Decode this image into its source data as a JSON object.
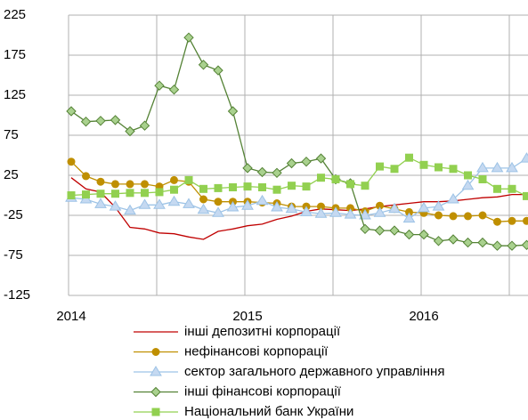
{
  "chart_data": {
    "type": "line",
    "categories": [
      "2014",
      null,
      null,
      null,
      null,
      null,
      null,
      null,
      null,
      null,
      null,
      null,
      "2015",
      null,
      null,
      null,
      null,
      null,
      null,
      null,
      null,
      null,
      null,
      null,
      "2016",
      null,
      null,
      null,
      null,
      null,
      null,
      null
    ],
    "ylim": [
      -125,
      225
    ],
    "yticks": [
      -125,
      -75,
      -25,
      25,
      75,
      125,
      175,
      225
    ],
    "grid": true,
    "series": [
      {
        "name": "інші депозитні корпорації",
        "color": "#c00000",
        "marker": "none",
        "values": [
          22,
          8,
          4,
          -15,
          -40,
          -42,
          -47,
          -48,
          -52,
          -55,
          -45,
          -42,
          -38,
          -36,
          -30,
          -26,
          -20,
          -17,
          -18,
          -19,
          -17,
          -14,
          -12,
          -10,
          -8,
          -8,
          -7,
          -5,
          -3,
          -2,
          1,
          1
        ]
      },
      {
        "name": "нефінансові корпорації",
        "color": "#bf8f00",
        "marker": "circle",
        "marker_color": "#bf8f00",
        "values": [
          42,
          24,
          17,
          14,
          14,
          14,
          11,
          19,
          17,
          -5,
          -8,
          -8,
          -8,
          -9,
          -10,
          -14,
          -14,
          -14,
          -16,
          -16,
          -20,
          -13,
          -17,
          -21,
          -22,
          -25,
          -26,
          -26,
          -25,
          -33,
          -32,
          -32
        ]
      },
      {
        "name": "сектор загального державного управління",
        "color": "#9dc3e6",
        "marker": "triangle",
        "marker_color": "#c5d9f1",
        "values": [
          -3,
          -5,
          -11,
          -14,
          -19,
          -12,
          -12,
          -8,
          -11,
          -18,
          -22,
          -15,
          -13,
          -7,
          -15,
          -17,
          -21,
          -23,
          -22,
          -24,
          -25,
          -22,
          -17,
          -29,
          -16,
          -14,
          -5,
          12,
          34,
          34,
          34,
          46
        ]
      },
      {
        "name": "інші фінансові корпорації",
        "color": "#548235",
        "marker": "diamond",
        "marker_color": "#a9d18e",
        "values": [
          105,
          92,
          93,
          94,
          80,
          87,
          137,
          132,
          197,
          163,
          156,
          105,
          34,
          29,
          28,
          40,
          42,
          46,
          20,
          15,
          -42,
          -44,
          -44,
          -49,
          -49,
          -57,
          -55,
          -59,
          -59,
          -63,
          -63,
          -62
        ]
      },
      {
        "name": "Національний банк України",
        "color": "#92d050",
        "marker": "square",
        "marker_color": "#92d050",
        "values": [
          0,
          1,
          2,
          2,
          3,
          3,
          4,
          7,
          19,
          8,
          9,
          10,
          11,
          10,
          7,
          12,
          11,
          22,
          20,
          14,
          12,
          36,
          33,
          47,
          38,
          35,
          33,
          25,
          20,
          8,
          8,
          -1
        ]
      }
    ]
  }
}
